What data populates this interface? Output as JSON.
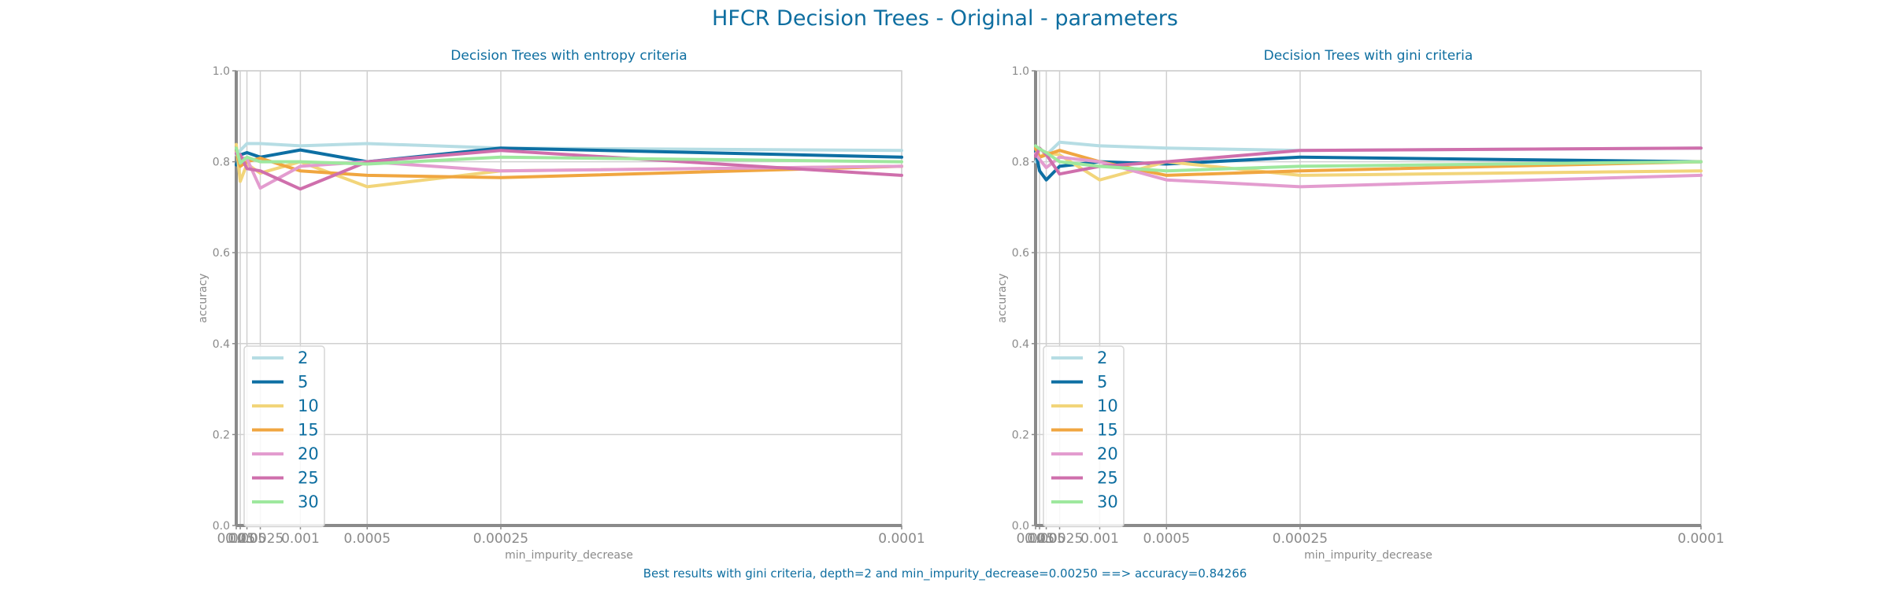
{
  "figure": {
    "title": "HFCR Decision Trees - Original - parameters",
    "footer": "Best results with gini criteria, depth=2 and min_impurity_decrease=0.00250 ==> accuracy=0.84266"
  },
  "colors": {
    "title": "#0e6ea0",
    "axis_text": "#8a8a8a",
    "grid": "#d0d0d0",
    "spine": "#8a8a8a",
    "series": [
      "#b6dde4",
      "#0d6fa3",
      "#f2d57a",
      "#f0a640",
      "#e39ccf",
      "#cf6fac",
      "#9ee89e"
    ]
  },
  "chart_data": [
    {
      "type": "line",
      "title": "Decision Trees with entropy criteria",
      "xlabel": "min_impurity_decrease",
      "ylabel": "accuracy",
      "x_scale": "reciprocal",
      "x": [
        0.025,
        0.01,
        0.005,
        0.0025,
        0.001,
        0.0005,
        0.00025,
        0.0001
      ],
      "x_tick_labels": [
        "0.025",
        "0.01",
        "0.005",
        "0.0025",
        "0.001",
        "0.0005",
        "0.00025",
        "0.0001"
      ],
      "ylim": [
        0.0,
        1.0
      ],
      "y_ticks": [
        0.0,
        0.2,
        0.4,
        0.6,
        0.8,
        1.0
      ],
      "y_tick_labels": [
        "0.0",
        "0.2",
        "0.4",
        "0.6",
        "0.8",
        "1.0"
      ],
      "grid": true,
      "legend_position": "lower-left",
      "series": [
        {
          "name": "2",
          "values": [
            0.815,
            0.825,
            0.84,
            0.84,
            0.835,
            0.84,
            0.83,
            0.825
          ]
        },
        {
          "name": "5",
          "values": [
            0.793,
            0.815,
            0.82,
            0.81,
            0.826,
            0.8,
            0.83,
            0.81
          ]
        },
        {
          "name": "10",
          "values": [
            0.838,
            0.757,
            0.795,
            0.775,
            0.8,
            0.745,
            0.78,
            0.79
          ]
        },
        {
          "name": "15",
          "values": [
            0.822,
            0.79,
            0.8,
            0.808,
            0.78,
            0.77,
            0.765,
            0.79
          ]
        },
        {
          "name": "20",
          "values": [
            0.82,
            0.81,
            0.806,
            0.742,
            0.79,
            0.8,
            0.78,
            0.79
          ]
        },
        {
          "name": "25",
          "values": [
            0.818,
            0.815,
            0.785,
            0.78,
            0.74,
            0.8,
            0.825,
            0.77
          ]
        },
        {
          "name": "30",
          "values": [
            0.83,
            0.797,
            0.81,
            0.8,
            0.8,
            0.795,
            0.81,
            0.8
          ]
        }
      ]
    },
    {
      "type": "line",
      "title": "Decision Trees with gini criteria",
      "xlabel": "min_impurity_decrease",
      "ylabel": "accuracy",
      "x_scale": "reciprocal",
      "x": [
        0.025,
        0.01,
        0.005,
        0.0025,
        0.001,
        0.0005,
        0.00025,
        0.0001
      ],
      "x_tick_labels": [
        "0.025",
        "0.01",
        "0.005",
        "0.0025",
        "0.001",
        "0.0005",
        "0.00025",
        "0.0001"
      ],
      "ylim": [
        0.0,
        1.0
      ],
      "y_ticks": [
        0.0,
        0.2,
        0.4,
        0.6,
        0.8,
        1.0
      ],
      "y_tick_labels": [
        "0.0",
        "0.2",
        "0.4",
        "0.6",
        "0.8",
        "1.0"
      ],
      "grid": true,
      "legend_position": "lower-left",
      "series": [
        {
          "name": "2",
          "values": [
            0.8,
            0.81,
            0.815,
            0.843,
            0.835,
            0.83,
            0.825,
            0.83
          ]
        },
        {
          "name": "5",
          "values": [
            0.822,
            0.78,
            0.76,
            0.79,
            0.8,
            0.795,
            0.81,
            0.8
          ]
        },
        {
          "name": "10",
          "values": [
            0.83,
            0.81,
            0.82,
            0.815,
            0.76,
            0.8,
            0.77,
            0.78
          ]
        },
        {
          "name": "15",
          "values": [
            0.83,
            0.81,
            0.815,
            0.825,
            0.8,
            0.77,
            0.78,
            0.8
          ]
        },
        {
          "name": "20",
          "values": [
            0.818,
            0.805,
            0.787,
            0.81,
            0.8,
            0.76,
            0.745,
            0.77
          ]
        },
        {
          "name": "25",
          "values": [
            0.812,
            0.83,
            0.816,
            0.773,
            0.79,
            0.8,
            0.825,
            0.83
          ]
        },
        {
          "name": "30",
          "values": [
            0.835,
            0.828,
            0.82,
            0.8,
            0.79,
            0.78,
            0.79,
            0.8
          ]
        }
      ]
    }
  ]
}
